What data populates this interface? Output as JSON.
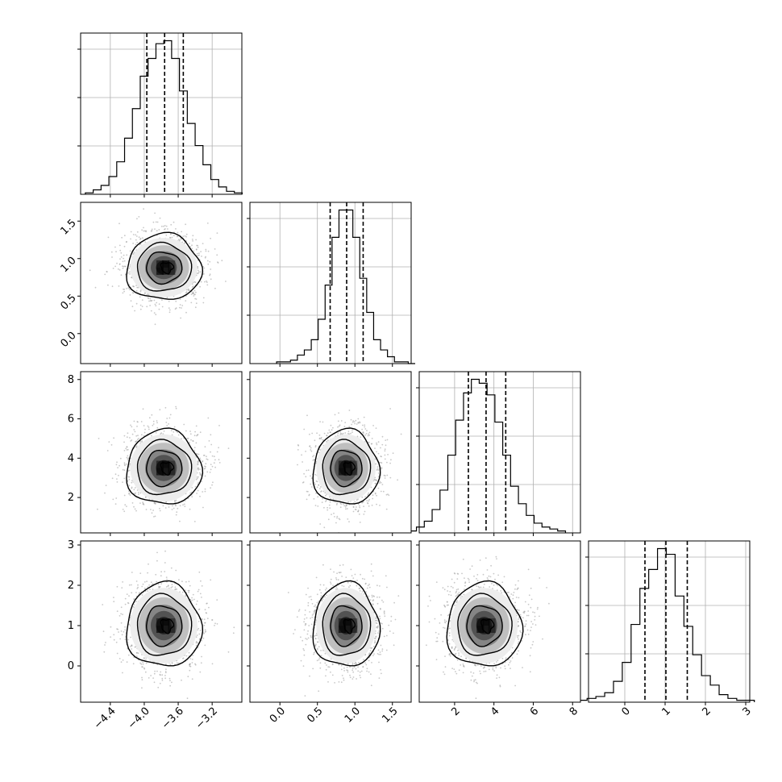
{
  "chart_data": {
    "type": "corner",
    "params": [
      {
        "range": [
          -4.75,
          -2.85
        ],
        "ticks": [
          -4.4,
          -4.0,
          -3.6,
          -3.2
        ],
        "tick_labels": [
          "−4.4",
          "−4.0",
          "−3.6",
          "−3.2"
        ],
        "quantiles": [
          -3.97,
          -3.76,
          -3.54
        ],
        "mean": -3.77,
        "sd": 0.22
      },
      {
        "range": [
          -0.4,
          1.75
        ],
        "ticks": [
          0.0,
          0.5,
          1.0,
          1.5
        ],
        "tick_labels": [
          "0.0",
          "0.5",
          "1.0",
          "1.5"
        ],
        "quantiles": [
          0.67,
          0.89,
          1.11
        ],
        "mean": 0.88,
        "sd": 0.22
      },
      {
        "range": [
          0.2,
          8.4
        ],
        "ticks": [
          2,
          4,
          6,
          8
        ],
        "tick_labels": [
          "2",
          "4",
          "6",
          "8"
        ],
        "quantiles": [
          2.7,
          3.6,
          4.6
        ],
        "mean": 3.65,
        "sd": 0.95
      },
      {
        "range": [
          -0.9,
          3.1
        ],
        "ticks": [
          0,
          1,
          2,
          3
        ],
        "tick_labels": [
          "0",
          "1",
          "2",
          "3"
        ],
        "quantiles": [
          0.5,
          1.02,
          1.55
        ],
        "mean": 1.03,
        "sd": 0.52
      }
    ],
    "histograms": [
      {
        "param": 0,
        "counts": [
          1,
          3,
          6,
          12,
          22,
          38,
          58,
          80,
          92,
          102,
          104,
          92,
          70,
          48,
          33,
          20,
          10,
          5,
          2,
          1
        ]
      },
      {
        "param": 1,
        "counts": [
          1,
          1,
          2,
          5,
          8,
          14,
          26,
          46,
          74,
          90,
          90,
          74,
          50,
          30,
          14,
          8,
          4,
          1,
          1,
          0
        ]
      },
      {
        "param": 2,
        "counts": [
          1,
          3,
          6,
          12,
          22,
          40,
          58,
          72,
          79,
          77,
          71,
          57,
          40,
          24,
          15,
          9,
          5,
          3,
          2,
          1
        ]
      },
      {
        "param": 3,
        "counts": [
          1,
          2,
          3,
          5,
          11,
          21,
          41,
          60,
          70,
          81,
          78,
          56,
          40,
          25,
          14,
          9,
          4,
          2,
          1,
          1
        ]
      }
    ],
    "pairs": [
      {
        "x": 0,
        "y": 1,
        "center": [
          -3.77,
          0.88
        ]
      },
      {
        "x": 0,
        "y": 2,
        "center": [
          -3.77,
          3.5
        ]
      },
      {
        "x": 1,
        "y": 2,
        "center": [
          0.88,
          3.5
        ]
      },
      {
        "x": 0,
        "y": 3,
        "center": [
          -3.77,
          1.0
        ]
      },
      {
        "x": 1,
        "y": 3,
        "center": [
          0.88,
          1.0
        ]
      },
      {
        "x": 2,
        "y": 3,
        "center": [
          3.5,
          1.0
        ]
      }
    ],
    "grid": true,
    "colors": {
      "line": "#000000",
      "grid": "#b0b0b0",
      "density": "#000000",
      "points": "#9a9a9a"
    }
  }
}
